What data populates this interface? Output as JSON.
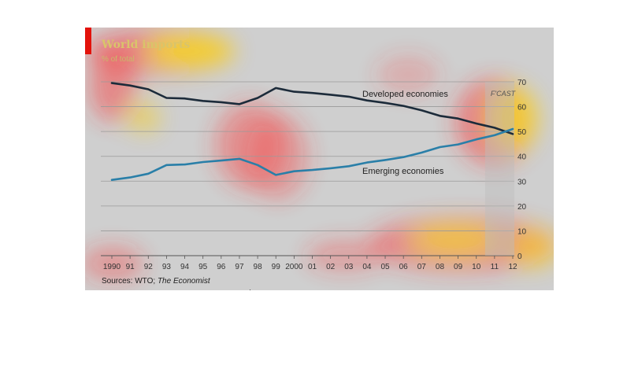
{
  "chart_data": {
    "type": "line",
    "title": "World imports",
    "subtitle": "% of total",
    "x": [
      "1990",
      "91",
      "92",
      "93",
      "94",
      "95",
      "96",
      "97",
      "98",
      "99",
      "2000",
      "01",
      "02",
      "03",
      "04",
      "05",
      "06",
      "07",
      "08",
      "09",
      "10",
      "11",
      "12"
    ],
    "series": [
      {
        "name": "Developed economies",
        "color": "#1c2b3a",
        "values": [
          69.5,
          68.5,
          67,
          63.5,
          63.3,
          62.3,
          61.8,
          61,
          63.5,
          67.5,
          66,
          65.5,
          64.8,
          64,
          62.5,
          61.5,
          60.3,
          58.5,
          56.3,
          55.2,
          53.2,
          51.5,
          49
        ]
      },
      {
        "name": "Emerging economies",
        "color": "#2a7fa8",
        "values": [
          30.5,
          31.5,
          33,
          36.5,
          36.7,
          37.7,
          38.3,
          39,
          36.5,
          32.5,
          34,
          34.5,
          35.2,
          36,
          37.5,
          38.5,
          39.7,
          41.5,
          43.7,
          44.8,
          46.8,
          48.5,
          51
        ]
      }
    ],
    "ylim": [
      0,
      70
    ],
    "yticks": [
      0,
      10,
      20,
      30,
      40,
      50,
      60,
      70
    ],
    "grid": true,
    "forecast_label": "F'CAST",
    "forecast_from": "11",
    "source": "Sources: WTO; The Economist",
    "accent_color": "#e3120b"
  }
}
